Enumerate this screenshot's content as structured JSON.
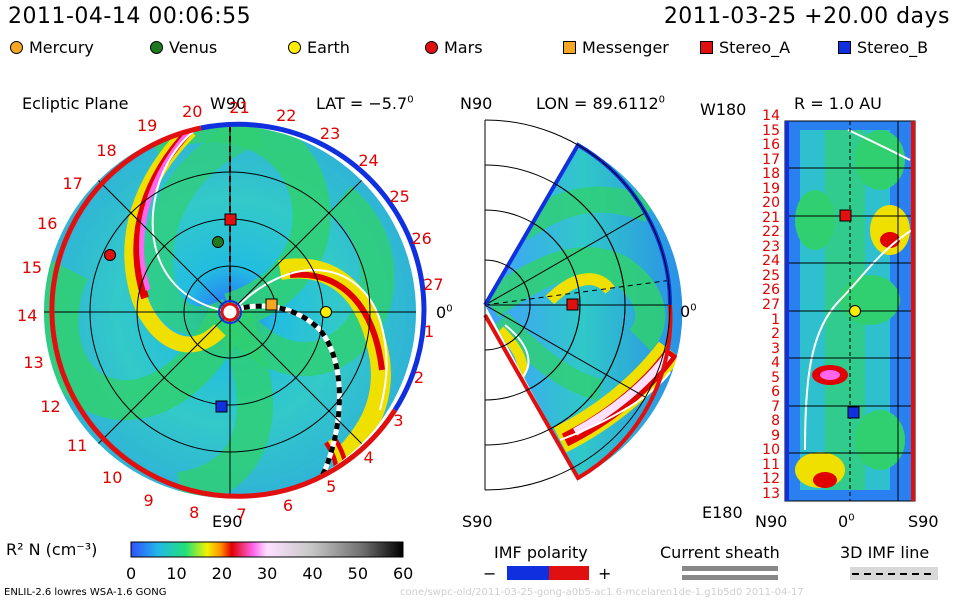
{
  "header": {
    "left_timestamp": "2011-04-14 00:06:55",
    "right_timestamp": "2011-03-25 +20.00 days"
  },
  "legend": [
    {
      "name": "Mercury",
      "color": "#f5a623",
      "shape": "circle"
    },
    {
      "name": "Venus",
      "color": "#1f7a1f",
      "shape": "circle"
    },
    {
      "name": "Earth",
      "color": "#ffee00",
      "shape": "circle"
    },
    {
      "name": "Mars",
      "color": "#e01010",
      "shape": "circle"
    },
    {
      "name": "Messenger",
      "color": "#f5a623",
      "shape": "square"
    },
    {
      "name": "Stereo_A",
      "color": "#e01010",
      "shape": "square"
    },
    {
      "name": "Stereo_B",
      "color": "#1030e0",
      "shape": "square"
    }
  ],
  "panels": {
    "ecliptic": {
      "title": "Ecliptic Plane",
      "top_label": "W90",
      "bottom_label": "E90",
      "right_label": "0",
      "right_sup": "0",
      "lat_label": "LAT = −5.7",
      "lat_sup": "0",
      "carrington_numbers": [
        "20",
        "21",
        "22",
        "23",
        "24",
        "25",
        "26",
        "27",
        "1",
        "2",
        "3",
        "4",
        "5",
        "6",
        "7",
        "8",
        "9",
        "10",
        "11",
        "12",
        "13",
        "14",
        "15",
        "16",
        "17",
        "18",
        "19"
      ]
    },
    "meridional": {
      "top_label": "N90",
      "bottom_label": "S90",
      "lon_label": "LON = 89.6112",
      "lon_sup": "0",
      "right_label": "0",
      "right_sup": "0"
    },
    "radial": {
      "title": "R = 1.0 AU",
      "top_left_label": "W180",
      "bottom_left_label": "E180",
      "x_labels": [
        "N90",
        "0",
        "S90"
      ],
      "x_mid_sup": "0",
      "y_labels": [
        "14",
        "15",
        "16",
        "17",
        "18",
        "19",
        "20",
        "21",
        "22",
        "23",
        "24",
        "25",
        "26",
        "27",
        "1",
        "2",
        "3",
        "4",
        "5",
        "6",
        "7",
        "8",
        "9",
        "10",
        "11",
        "12",
        "13"
      ]
    }
  },
  "colorbar": {
    "label": "R² N (cm⁻³)",
    "ticks": [
      "0",
      "10",
      "20",
      "30",
      "40",
      "50",
      "60"
    ],
    "min": 0,
    "max": 60
  },
  "imf": {
    "polarity_label": "IMF polarity",
    "minus": "−",
    "plus": "+",
    "sheath_label": "Current sheath",
    "line_label": "3D IMF line"
  },
  "footer": {
    "model": "ENLIL-2.6 lowres WSA-1.6 GONG",
    "watermark": "cone/swpc-old/2011-03-25-gong-a0b5-ac1.6-mcelaren1de-1.g1b5d0    2011-04-17"
  },
  "chart_data": {
    "type": "heatmap",
    "title": "",
    "quantity": "R² N (cm⁻³)",
    "color_scale": {
      "min": 0,
      "max": 60,
      "ticks": [
        0,
        10,
        20,
        30,
        40,
        50,
        60
      ]
    },
    "panels": [
      "Ecliptic Plane",
      "Meridional (LON = 89.6112°)",
      "R = 1.0 AU"
    ],
    "radial_y_ticks": [
      14,
      15,
      16,
      17,
      18,
      19,
      20,
      21,
      22,
      23,
      24,
      25,
      26,
      27,
      1,
      2,
      3,
      4,
      5,
      6,
      7,
      8,
      9,
      10,
      11,
      12,
      13
    ],
    "radial_x_ticks": [
      "N90",
      "0",
      "S90"
    ]
  }
}
